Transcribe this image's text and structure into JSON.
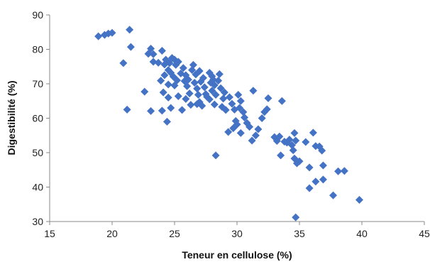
{
  "chart_data": {
    "type": "scatter",
    "title": "",
    "xlabel": "Teneur en cellulose (%)",
    "ylabel": "Digestibilité (%)",
    "xlim": [
      15,
      45
    ],
    "ylim": [
      30,
      90
    ],
    "xticks": [
      "15",
      "20",
      "25",
      "30",
      "35",
      "40",
      "45"
    ],
    "yticks": [
      "30",
      "40",
      "50",
      "60",
      "70",
      "80",
      "90"
    ],
    "grid": false,
    "legend": "none",
    "marker_color": "#4472C4",
    "series": [
      {
        "points": [
          [
            18.9,
            83.8
          ],
          [
            19.4,
            84.2
          ],
          [
            19.7,
            84.6
          ],
          [
            20.0,
            84.8
          ],
          [
            21.4,
            85.7
          ],
          [
            21.5,
            80.7
          ],
          [
            20.9,
            76.0
          ],
          [
            21.2,
            62.5
          ],
          [
            22.6,
            67.7
          ],
          [
            22.9,
            78.7
          ],
          [
            23.1,
            80.2
          ],
          [
            23.3,
            78.6
          ],
          [
            23.1,
            62.1
          ],
          [
            23.7,
            76.1
          ],
          [
            24.0,
            79.6
          ],
          [
            24.3,
            77.0
          ],
          [
            23.9,
            70.9
          ],
          [
            24.1,
            67.5
          ],
          [
            24.0,
            62.2
          ],
          [
            24.5,
            66.0
          ],
          [
            24.4,
            59.0
          ],
          [
            24.7,
            63.0
          ],
          [
            24.2,
            72.5
          ],
          [
            24.5,
            74.0
          ],
          [
            24.6,
            76.0
          ],
          [
            24.8,
            77.5
          ],
          [
            25.0,
            77.0
          ],
          [
            25.1,
            75.5
          ],
          [
            25.3,
            76.4
          ],
          [
            24.7,
            73.2
          ],
          [
            24.9,
            72.1
          ],
          [
            25.2,
            71.0
          ],
          [
            24.5,
            69.8
          ],
          [
            25.0,
            69.5
          ],
          [
            25.3,
            66.4
          ],
          [
            25.6,
            62.4
          ],
          [
            25.5,
            73.0
          ],
          [
            25.7,
            74.6
          ],
          [
            25.9,
            72.5
          ],
          [
            26.1,
            71.2
          ],
          [
            26.0,
            69.3
          ],
          [
            26.2,
            67.2
          ],
          [
            25.9,
            65.6
          ],
          [
            26.4,
            74.0
          ],
          [
            26.5,
            75.5
          ],
          [
            26.6,
            70.3
          ],
          [
            26.8,
            68.6
          ],
          [
            26.9,
            66.8
          ],
          [
            27.0,
            64.7
          ],
          [
            27.2,
            63.6
          ],
          [
            26.7,
            72.7
          ],
          [
            27.0,
            73.7
          ],
          [
            27.3,
            71.7
          ],
          [
            27.1,
            70.6
          ],
          [
            27.4,
            69.0
          ],
          [
            27.5,
            67.0
          ],
          [
            26.3,
            63.9
          ],
          [
            27.8,
            73.2
          ],
          [
            28.0,
            72.2
          ],
          [
            28.1,
            71.2
          ],
          [
            27.9,
            70.3
          ],
          [
            28.2,
            69.6
          ],
          [
            28.0,
            68.0
          ],
          [
            28.3,
            66.8
          ],
          [
            27.8,
            65.5
          ],
          [
            28.2,
            64.0
          ],
          [
            28.6,
            72.8
          ],
          [
            28.5,
            70.9
          ],
          [
            28.7,
            68.7
          ],
          [
            29.0,
            67.5
          ],
          [
            28.9,
            65.7
          ],
          [
            28.8,
            63.3
          ],
          [
            29.1,
            62.4
          ],
          [
            28.3,
            49.2
          ],
          [
            29.4,
            66.1
          ],
          [
            29.6,
            64.2
          ],
          [
            29.8,
            62.5
          ],
          [
            29.3,
            56.0
          ],
          [
            29.7,
            57.1
          ],
          [
            30.0,
            58.2
          ],
          [
            30.1,
            66.8
          ],
          [
            30.3,
            65.0
          ],
          [
            30.2,
            63.0
          ],
          [
            30.5,
            61.8
          ],
          [
            30.6,
            60.2
          ],
          [
            30.8,
            58.6
          ],
          [
            30.3,
            55.7
          ],
          [
            31.0,
            57.5
          ],
          [
            31.2,
            53.5
          ],
          [
            31.5,
            55.0
          ],
          [
            31.7,
            56.8
          ],
          [
            32.0,
            60.0
          ],
          [
            32.2,
            61.8
          ],
          [
            32.4,
            62.6
          ],
          [
            32.5,
            65.8
          ],
          [
            31.3,
            68.0
          ],
          [
            33.0,
            54.5
          ],
          [
            33.2,
            53.4
          ],
          [
            33.4,
            54.7
          ],
          [
            33.6,
            65.0
          ],
          [
            33.8,
            53.2
          ],
          [
            33.5,
            49.2
          ],
          [
            34.0,
            52.9
          ],
          [
            34.2,
            53.8
          ],
          [
            34.4,
            52.2
          ],
          [
            34.5,
            50.7
          ],
          [
            34.6,
            55.7
          ],
          [
            34.7,
            53.5
          ],
          [
            34.6,
            48.3
          ],
          [
            34.8,
            46.9
          ],
          [
            35.0,
            47.5
          ],
          [
            34.7,
            31.2
          ],
          [
            35.5,
            53.1
          ],
          [
            35.8,
            45.7
          ],
          [
            35.8,
            39.7
          ],
          [
            36.1,
            55.8
          ],
          [
            36.3,
            51.9
          ],
          [
            36.6,
            51.8
          ],
          [
            36.8,
            50.6
          ],
          [
            36.9,
            46.3
          ],
          [
            36.3,
            41.6
          ],
          [
            36.9,
            42.2
          ],
          [
            37.7,
            37.6
          ],
          [
            38.1,
            44.6
          ],
          [
            38.6,
            44.7
          ],
          [
            39.8,
            36.3
          ],
          [
            23.3,
            76.4
          ],
          [
            24.2,
            75.6
          ],
          [
            25.8,
            70.8
          ],
          [
            27.6,
            66.2
          ],
          [
            29.9,
            59.2
          ],
          [
            26.8,
            64.1
          ]
        ]
      }
    ]
  }
}
